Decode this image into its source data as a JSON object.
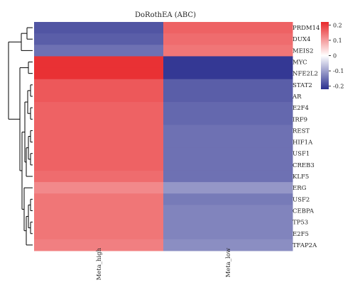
{
  "chart_data": {
    "type": "heatmap",
    "title": "DoRothEA (ABC)",
    "columns": [
      "Meta_high",
      "Meta_low"
    ],
    "rows": [
      "PRDM14",
      "DUX4",
      "MEIS2",
      "MYC",
      "NFE2L2",
      "STAT2",
      "AR",
      "E2F4",
      "IRF9",
      "REST",
      "HIF1A",
      "USF1",
      "CREB3",
      "KLF5",
      "ERG",
      "USF2",
      "CEBPA",
      "TP53",
      "E2F5",
      "TFAP2A"
    ],
    "values": [
      [
        -0.18,
        0.16
      ],
      [
        -0.17,
        0.15
      ],
      [
        -0.15,
        0.14
      ],
      [
        0.21,
        -0.21
      ],
      [
        0.21,
        -0.21
      ],
      [
        0.17,
        -0.17
      ],
      [
        0.17,
        -0.17
      ],
      [
        0.16,
        -0.16
      ],
      [
        0.16,
        -0.16
      ],
      [
        0.16,
        -0.15
      ],
      [
        0.16,
        -0.15
      ],
      [
        0.16,
        -0.15
      ],
      [
        0.16,
        -0.15
      ],
      [
        0.15,
        -0.15
      ],
      [
        0.12,
        -0.11
      ],
      [
        0.14,
        -0.14
      ],
      [
        0.14,
        -0.13
      ],
      [
        0.14,
        -0.13
      ],
      [
        0.14,
        -0.13
      ],
      [
        0.13,
        -0.12
      ]
    ],
    "colorbar": {
      "ticks": [
        0.2,
        0.1,
        0,
        -0.1,
        -0.2
      ],
      "range": [
        -0.22,
        0.22
      ],
      "low_color": "#2a2f8f",
      "mid_color": "#ffffff",
      "high_color": "#e8272a"
    },
    "dendrogram": "rows"
  }
}
